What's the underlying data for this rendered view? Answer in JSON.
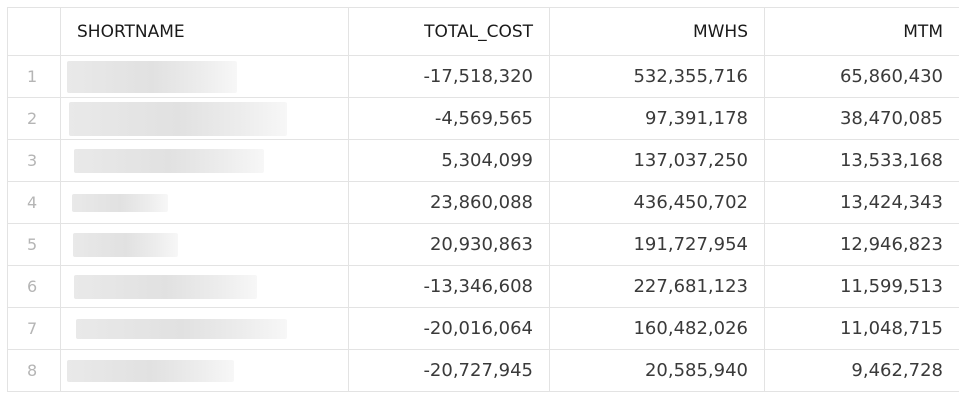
{
  "columns": {
    "index": "",
    "shortname": "SHORTNAME",
    "total_cost": "TOTAL_COST",
    "mwhs": "MWHS",
    "mtm": "MTM"
  },
  "rows": [
    {
      "index": "1",
      "total_cost": "-17,518,320",
      "mwhs": "532,355,716",
      "mtm": "65,860,430"
    },
    {
      "index": "2",
      "total_cost": "-4,569,565",
      "mwhs": "97,391,178",
      "mtm": "38,470,085"
    },
    {
      "index": "3",
      "total_cost": "5,304,099",
      "mwhs": "137,037,250",
      "mtm": "13,533,168"
    },
    {
      "index": "4",
      "total_cost": "23,860,088",
      "mwhs": "436,450,702",
      "mtm": "13,424,343"
    },
    {
      "index": "5",
      "total_cost": "20,930,863",
      "mwhs": "191,727,954",
      "mtm": "12,946,823"
    },
    {
      "index": "6",
      "total_cost": "-13,346,608",
      "mwhs": "227,681,123",
      "mtm": "11,599,513"
    },
    {
      "index": "7",
      "total_cost": "-20,016,064",
      "mwhs": "160,482,026",
      "mtm": "11,048,715"
    },
    {
      "index": "8",
      "total_cost": "-20,727,945",
      "mwhs": "20,585,940",
      "mtm": "9,462,728"
    }
  ]
}
